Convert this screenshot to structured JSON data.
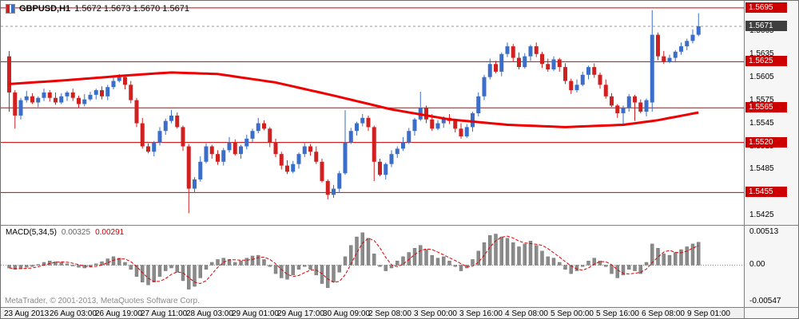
{
  "header": {
    "symbol": "GBPUSD,H1",
    "quotes": "1.5672 1.5673 1.5670 1.5671"
  },
  "watermark": "MetaTrader, © 2001-2013, MetaQuotes Software Corp.",
  "colors": {
    "up": "#3a6ec8",
    "down": "#d02020",
    "ma": "#ee0000",
    "level": "#cc0000",
    "histogram": "#8a8a8a",
    "signal": "#dd0000",
    "badge": "#cc0000",
    "current_badge": "#3f3f3f"
  },
  "chart_data": [
    {
      "type": "candlestick",
      "title": "GBPUSD H1",
      "price_range": [
        1.5415,
        1.57
      ],
      "current_price": 1.5671,
      "current_price_label": "1.5671",
      "y_ticks": [
        "1.5665",
        "1.5635",
        "1.5605",
        "1.5575",
        "1.5545",
        "1.5515",
        "1.5485",
        "1.5455",
        "1.5425"
      ],
      "levels": [
        {
          "value": 1.5695,
          "label": "1.5695"
        },
        {
          "value": 1.5625,
          "label": "1.5625"
        },
        {
          "value": 1.5565,
          "label": "1.5565"
        },
        {
          "value": 1.552,
          "label": "1.5520"
        },
        {
          "value": 1.5455,
          "label": "1.5455"
        }
      ],
      "x_labels": [
        "23 Aug 2013",
        "26 Aug 03:00",
        "26 Aug 19:00",
        "27 Aug 11:00",
        "28 Aug 03:00",
        "29 Aug 01:00",
        "29 Aug 17:00",
        "30 Aug 09:00",
        "2 Sep 08:00",
        "3 Sep 00:00",
        "3 Sep 16:00",
        "4 Sep 08:00",
        "5 Sep 00:00",
        "5 Sep 16:00",
        "6 Sep 08:00",
        "9 Sep 01:00"
      ],
      "first_open": 1.5632,
      "closes": [
        1.5585,
        1.5555,
        1.5575,
        1.558,
        1.5572,
        1.5578,
        1.5585,
        1.5578,
        1.5572,
        1.558,
        1.5585,
        1.5578,
        1.557,
        1.5576,
        1.5582,
        1.5588,
        1.558,
        1.5592,
        1.56,
        1.5605,
        1.5595,
        1.5575,
        1.5545,
        1.5515,
        1.5508,
        1.552,
        1.5535,
        1.5548,
        1.5555,
        1.554,
        1.5515,
        1.546,
        1.5472,
        1.5495,
        1.5515,
        1.5505,
        1.5495,
        1.551,
        1.552,
        1.5505,
        1.5515,
        1.5525,
        1.5535,
        1.5545,
        1.5538,
        1.552,
        1.5505,
        1.549,
        1.5482,
        1.5492,
        1.5505,
        1.5515,
        1.5508,
        1.5495,
        1.547,
        1.5452,
        1.546,
        1.548,
        1.552,
        1.5535,
        1.5545,
        1.5552,
        1.554,
        1.5495,
        1.5478,
        1.5492,
        1.5505,
        1.5512,
        1.552,
        1.5535,
        1.555,
        1.5565,
        1.555,
        1.5538,
        1.5545,
        1.5552,
        1.5548,
        1.5538,
        1.5528,
        1.554,
        1.5558,
        1.558,
        1.5605,
        1.5622,
        1.5612,
        1.5635,
        1.5645,
        1.563,
        1.5618,
        1.5632,
        1.5645,
        1.5635,
        1.5622,
        1.5615,
        1.5628,
        1.5618,
        1.56,
        1.5588,
        1.5595,
        1.5608,
        1.5618,
        1.5608,
        1.5595,
        1.558,
        1.5568,
        1.5558,
        1.5565,
        1.558,
        1.5572,
        1.556,
        1.5575,
        1.566,
        1.5632,
        1.5625,
        1.563,
        1.5638,
        1.5645,
        1.5652,
        1.566,
        1.5671
      ],
      "overrides": {
        "0": [
          1.5632,
          1.5639,
          1.556,
          1.5585
        ],
        "1": [
          1.5585,
          1.5588,
          1.5538,
          1.5555
        ],
        "31": [
          1.5515,
          1.5518,
          1.5428,
          1.546
        ],
        "58": [
          1.548,
          1.5562,
          1.5478,
          1.552
        ],
        "63": [
          1.554,
          1.5542,
          1.547,
          1.5495
        ],
        "71": [
          1.555,
          1.5586,
          1.5548,
          1.5565
        ],
        "106": [
          1.5558,
          1.5568,
          1.5542,
          1.5565
        ],
        "108": [
          1.558,
          1.5582,
          1.5548,
          1.5572
        ],
        "111": [
          1.5572,
          1.5692,
          1.556,
          1.566
        ],
        "119": [
          1.566,
          1.5688,
          1.5658,
          1.5671
        ]
      },
      "ma": {
        "name": "moving-average",
        "waypoints": [
          [
            0,
            1.5596
          ],
          [
            10,
            1.5601
          ],
          [
            20,
            1.5607
          ],
          [
            28,
            1.5611
          ],
          [
            36,
            1.5609
          ],
          [
            46,
            1.5598
          ],
          [
            56,
            1.5581
          ],
          [
            66,
            1.5563
          ],
          [
            76,
            1.555
          ],
          [
            86,
            1.5543
          ],
          [
            96,
            1.554
          ],
          [
            106,
            1.5543
          ],
          [
            112,
            1.5549
          ],
          [
            119,
            1.5559
          ]
        ]
      }
    },
    {
      "type": "bar",
      "name": "MACD(5,34,5)",
      "value_label": "0.00325",
      "signal_label": "0.00291",
      "range": [
        -0.00547,
        0.00513
      ],
      "axis_labels": [
        {
          "value": 0.00513,
          "label": "0.00513"
        },
        {
          "value": 0.0,
          "label": "0.00"
        },
        {
          "value": -0.00547,
          "label": "-0.00547"
        }
      ],
      "values": [
        -0.0004,
        -0.0006,
        -0.0005,
        -0.0003,
        -0.0002,
        0.0001,
        0.0004,
        0.0006,
        0.0005,
        0.0004,
        0.0002,
        0.0,
        -0.0003,
        -0.0004,
        -0.0002,
        0.0002,
        0.0005,
        0.0009,
        0.0012,
        0.001,
        0.0004,
        -0.0006,
        -0.0016,
        -0.0024,
        -0.0028,
        -0.0024,
        -0.0016,
        -0.0008,
        -0.0004,
        -0.001,
        -0.0022,
        -0.0034,
        -0.003,
        -0.0018,
        -0.0006,
        0.0004,
        0.0008,
        0.001,
        0.0008,
        0.0004,
        0.0006,
        0.001,
        0.0013,
        0.0014,
        0.0008,
        -0.0002,
        -0.0012,
        -0.0018,
        -0.002,
        -0.0014,
        -0.0006,
        -0.0002,
        -0.0006,
        -0.0014,
        -0.0026,
        -0.0032,
        -0.0024,
        -0.001,
        0.0012,
        0.0028,
        0.004,
        0.0046,
        0.0038,
        0.0016,
        -0.0002,
        -0.0008,
        -0.0004,
        0.0006,
        0.0012,
        0.0018,
        0.0024,
        0.0028,
        0.0022,
        0.0014,
        0.001,
        0.0012,
        0.0006,
        -0.0002,
        -0.0008,
        -0.0004,
        0.0008,
        0.002,
        0.0032,
        0.0042,
        0.0044,
        0.004,
        0.0038,
        0.0032,
        0.0026,
        0.003,
        0.0034,
        0.0028,
        0.002,
        0.0012,
        0.001,
        0.0004,
        -0.0006,
        -0.0012,
        -0.0008,
        -0.0002,
        0.0006,
        0.001,
        0.0006,
        -0.0002,
        -0.0012,
        -0.0018,
        -0.0014,
        -0.0006,
        -0.0008,
        -0.0012,
        0.0004,
        0.003,
        0.0024,
        0.0016,
        0.0014,
        0.0018,
        0.0022,
        0.0026,
        0.003,
        0.00325
      ]
    }
  ]
}
